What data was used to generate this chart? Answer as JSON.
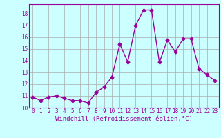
{
  "x": [
    0,
    1,
    2,
    3,
    4,
    5,
    6,
    7,
    8,
    9,
    10,
    11,
    12,
    13,
    14,
    15,
    16,
    17,
    18,
    19,
    20,
    21,
    22,
    23
  ],
  "y": [
    10.9,
    10.6,
    10.9,
    11.0,
    10.8,
    10.6,
    10.6,
    10.4,
    11.3,
    11.75,
    12.6,
    15.4,
    13.9,
    17.0,
    18.3,
    18.3,
    13.85,
    15.75,
    14.75,
    15.85,
    15.85,
    13.3,
    12.8,
    12.3
  ],
  "line_color": "#990099",
  "marker": "D",
  "marker_size": 2.5,
  "bg_color": "#ccffff",
  "grid_color": "#aaaaaa",
  "xlabel": "Windchill (Refroidissement éolien,°C)",
  "ylim_min": 10,
  "ylim_max": 18.8,
  "xlim_min": -0.5,
  "xlim_max": 23.5,
  "yticks": [
    10,
    11,
    12,
    13,
    14,
    15,
    16,
    17,
    18
  ],
  "xticks": [
    0,
    1,
    2,
    3,
    4,
    5,
    6,
    7,
    8,
    9,
    10,
    11,
    12,
    13,
    14,
    15,
    16,
    17,
    18,
    19,
    20,
    21,
    22,
    23
  ],
  "font_color": "#990099",
  "tick_fontsize": 5.5,
  "xlabel_fontsize": 6.5,
  "line_width": 1.0
}
